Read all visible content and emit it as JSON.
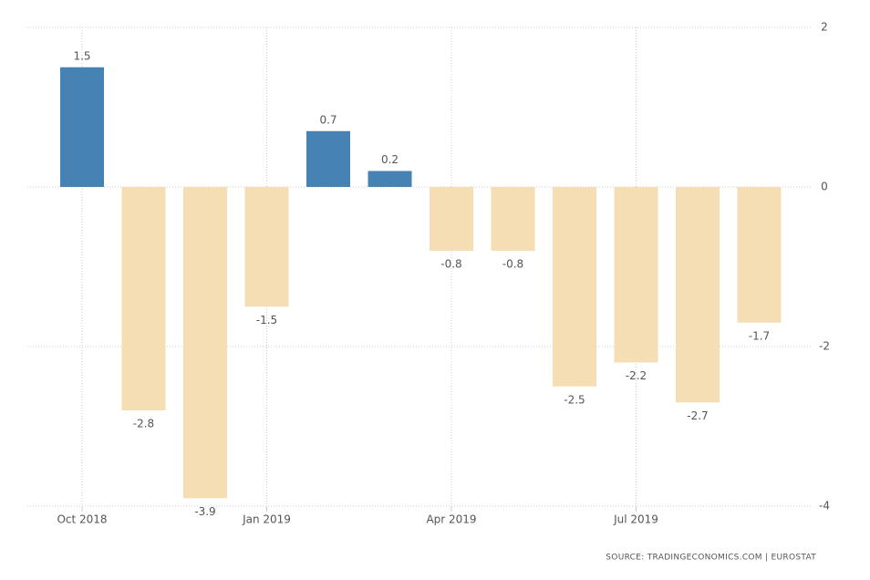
{
  "chart_data": {
    "type": "bar",
    "categories": [
      "Oct 2018",
      null,
      null,
      "Jan 2019",
      null,
      null,
      "Apr 2019",
      null,
      null,
      "Jul 2019",
      null,
      null
    ],
    "values": [
      1.5,
      -2.8,
      -3.9,
      -1.5,
      0.7,
      0.2,
      -0.8,
      -0.8,
      -2.5,
      -2.2,
      -2.7,
      -1.7
    ],
    "positive_color": "#4682b4",
    "negative_color": "#f5deb3",
    "ylim": [
      -4,
      2
    ],
    "yticks": [
      -4,
      -2,
      0,
      2
    ],
    "grid": true,
    "source": "SOURCE: TRADINGECONOMICS.COM | EUROSTAT"
  }
}
